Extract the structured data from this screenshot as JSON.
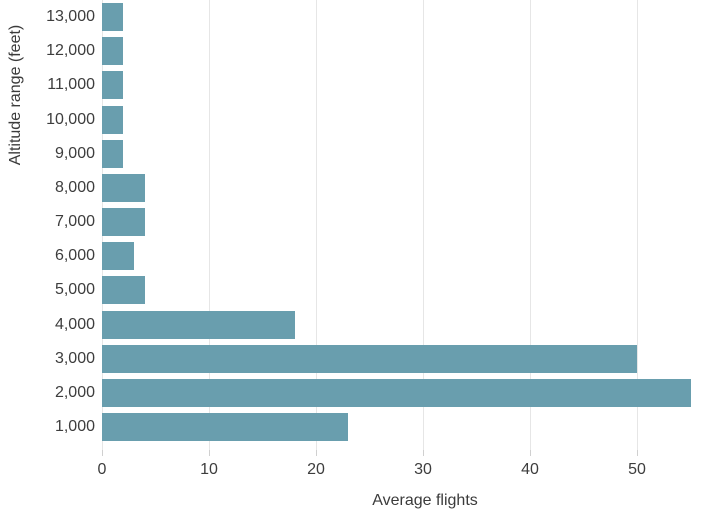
{
  "chart_data": {
    "type": "bar",
    "orientation": "horizontal",
    "title": "",
    "xlabel": "Average flights",
    "ylabel": "Altitude range (feet)",
    "categories": [
      "13,000",
      "12,000",
      "11,000",
      "10,000",
      "9,000",
      "8,000",
      "7,000",
      "6,000",
      "5,000",
      "4,000",
      "3,000",
      "2,000",
      "1,000"
    ],
    "values": [
      2,
      2,
      2,
      2,
      2,
      4,
      4,
      3,
      4,
      18,
      50,
      55,
      23
    ],
    "xticks": [
      0,
      10,
      20,
      30,
      40,
      50
    ],
    "xlim": [
      0,
      55
    ],
    "grid": true,
    "legend": "none",
    "bar_color": "#699eae",
    "gridline_color": "#e6e6e6",
    "tick_color": "#d0d0d0",
    "text_color": "#3d3d3d",
    "notes": "top of chart cropped above the 13,000 bar"
  }
}
